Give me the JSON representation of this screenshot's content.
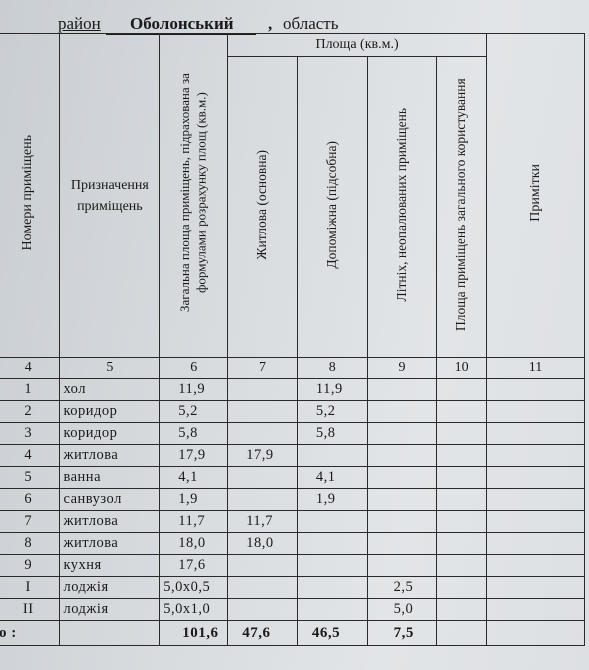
{
  "header": {
    "district_label": "район",
    "district_name": "Оболонський",
    "comma": ",",
    "region_label": "область"
  },
  "columns": {
    "col4": "Номери приміщень",
    "col5": "Призначення приміщень",
    "col6": "Загальна площа приміщень, підрахована за формулами розрахунку площ (кв.м.)",
    "area_group": "Площа (кв.м.)",
    "col7": "Житлова (основна)",
    "col8": "Допоміжна (підсобна)",
    "col9": "Літніх, неопалюваних приміщень",
    "col10": "Площа приміщень загального користування",
    "col11": "Примітки"
  },
  "column_numbers": [
    "4",
    "5",
    "6",
    "7",
    "8",
    "9",
    "10",
    "11"
  ],
  "rows": [
    {
      "num": "1",
      "name": "хол",
      "total": "11,9",
      "living": "",
      "aux": "11,9",
      "summer": ""
    },
    {
      "num": "2",
      "name": "коридор",
      "total": "5,2",
      "living": "",
      "aux": "5,2",
      "summer": ""
    },
    {
      "num": "3",
      "name": "коридор",
      "total": "5,8",
      "living": "",
      "aux": "5,8",
      "summer": ""
    },
    {
      "num": "4",
      "name": "житлова",
      "total": "17,9",
      "living": "17,9",
      "aux": "",
      "summer": ""
    },
    {
      "num": "5",
      "name": "ванна",
      "total": "4,1",
      "living": "",
      "aux": "4,1",
      "summer": ""
    },
    {
      "num": "6",
      "name": "санвузол",
      "total": "1,9",
      "living": "",
      "aux": "1,9",
      "summer": ""
    },
    {
      "num": "7",
      "name": "житлова",
      "total": "11,7",
      "living": "11,7",
      "aux": "",
      "summer": ""
    },
    {
      "num": "8",
      "name": "житлова",
      "total": "18,0",
      "living": "18,0",
      "aux": "",
      "summer": ""
    },
    {
      "num": "9",
      "name": "кухня",
      "total": "17,6",
      "living": "",
      "aux": "",
      "summer": ""
    },
    {
      "num": "I",
      "name": "лоджія",
      "total": "5,0x0,5",
      "living": "",
      "aux": "",
      "summer": "2,5"
    },
    {
      "num": "II",
      "name": "лоджія",
      "total": "5,0x1,0",
      "living": "",
      "aux": "",
      "summer": "5,0"
    }
  ],
  "totals": {
    "label": "о :",
    "total": "101,6",
    "living": "47,6",
    "aux": "46,5",
    "summer": "7,5"
  }
}
